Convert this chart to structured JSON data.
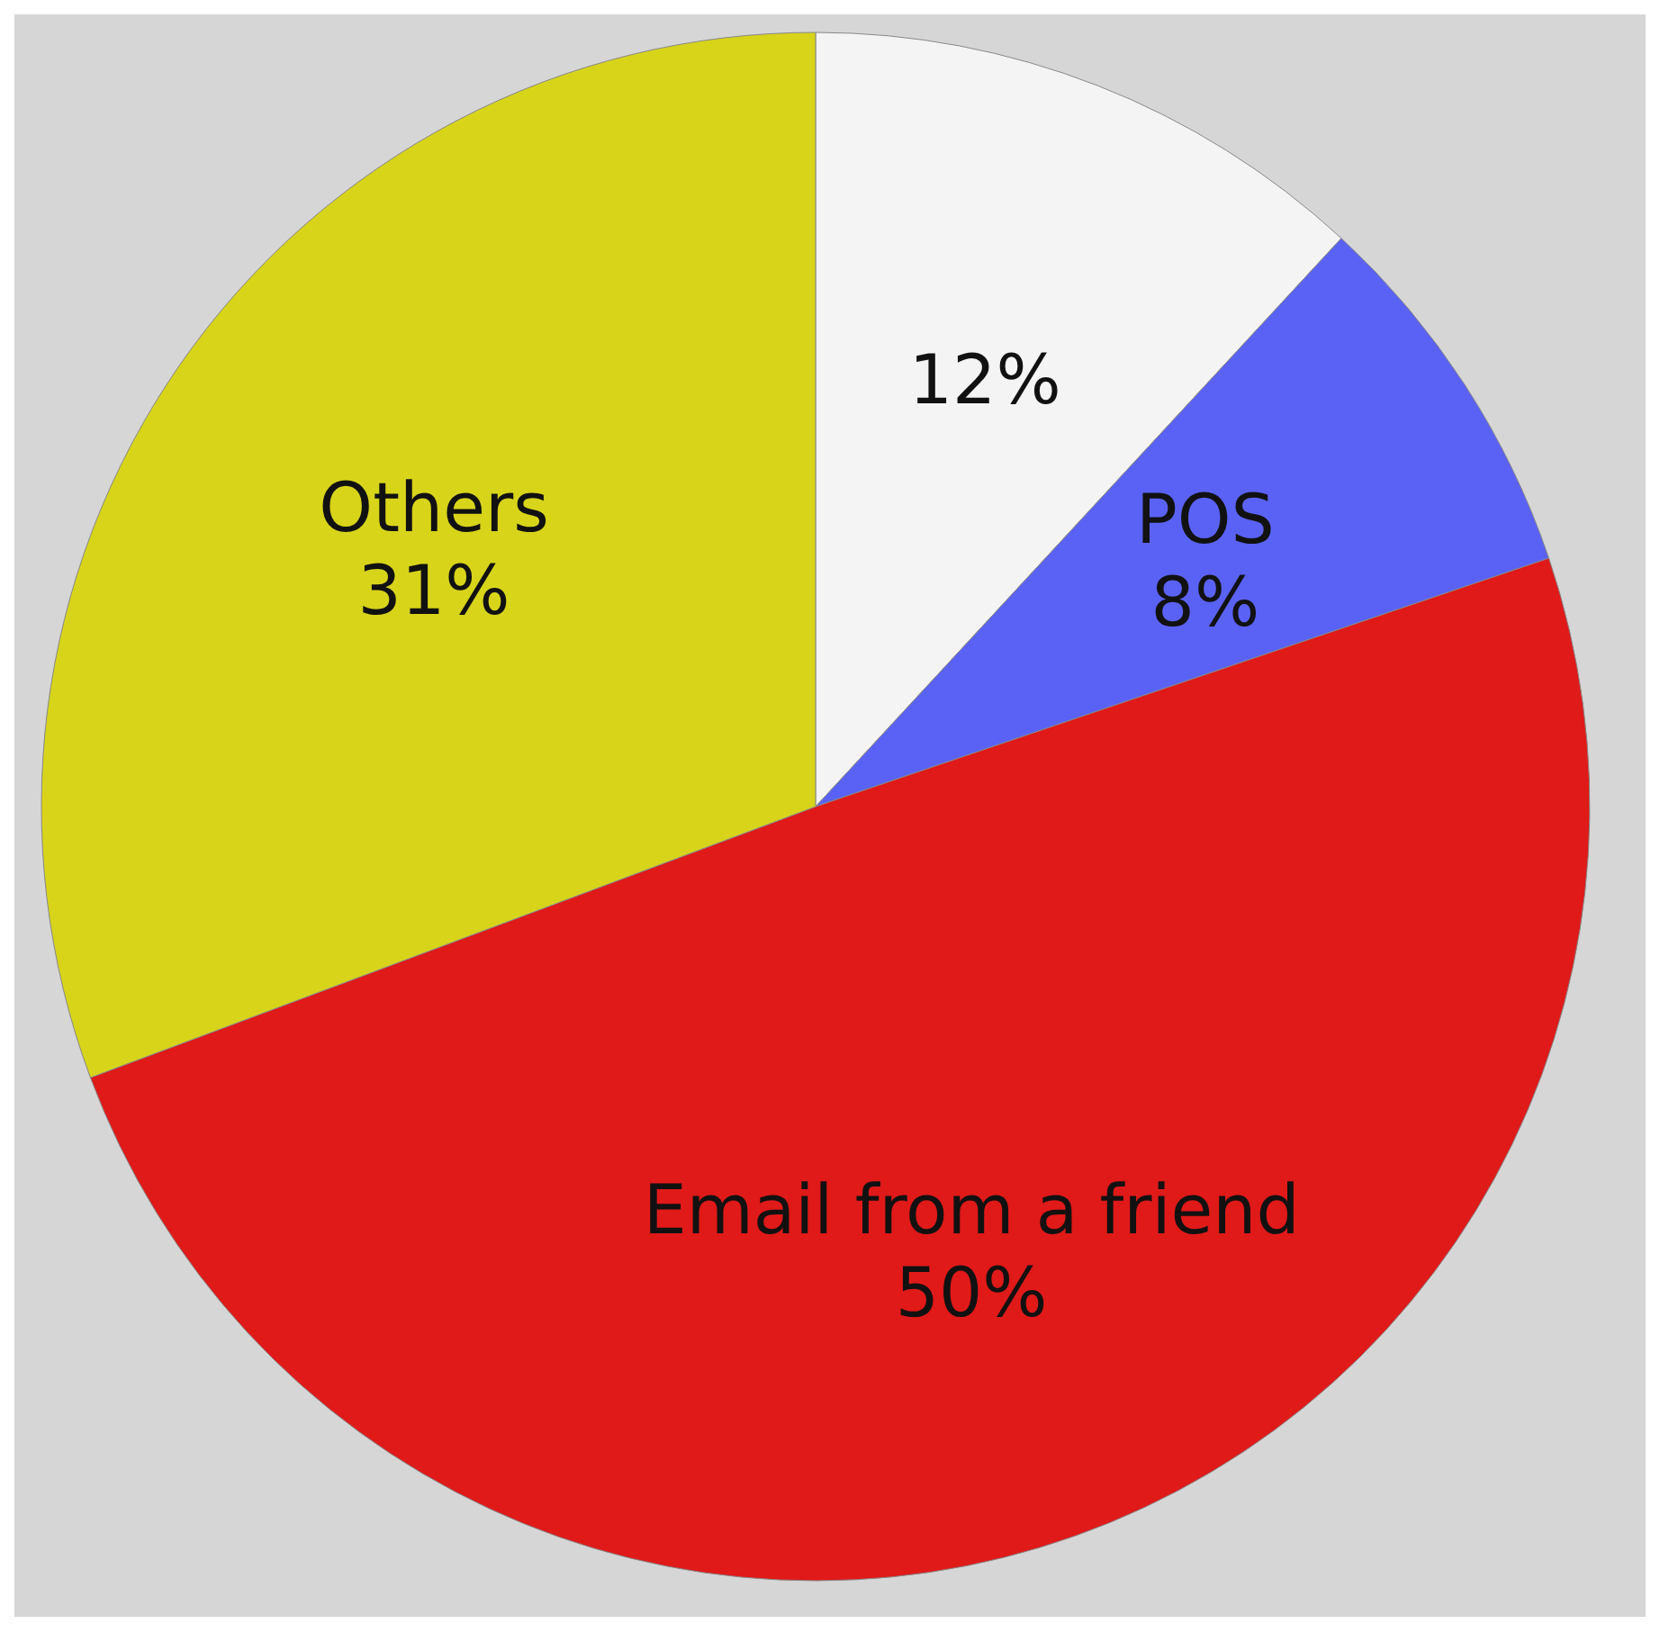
{
  "chart_data": {
    "type": "pie",
    "categories": [
      null,
      "POS",
      "Email from a friend",
      "Others"
    ],
    "values": [
      12,
      8,
      50,
      31
    ],
    "value_labels": [
      "12%",
      "8%",
      "50%",
      "31%"
    ],
    "colors": [
      "#f4f4f4",
      "#5a62f5",
      "#e01919",
      "#d8d41a"
    ]
  }
}
